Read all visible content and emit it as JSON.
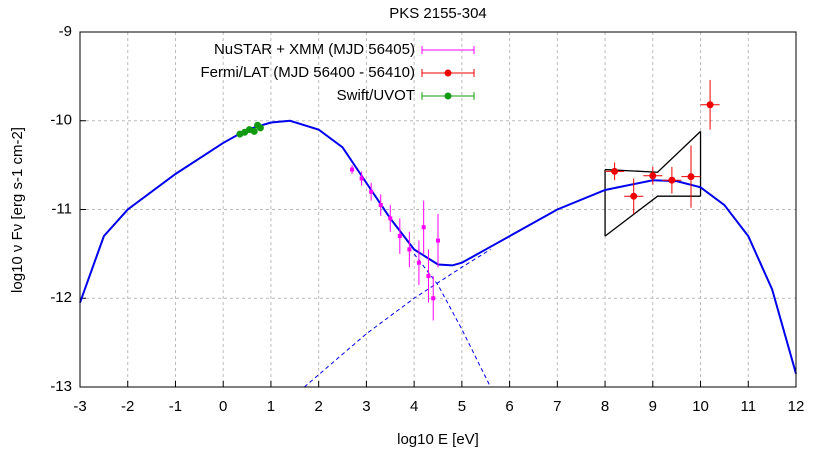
{
  "chart_data": {
    "type": "line",
    "title": "PKS 2155-304",
    "x_label": "log10 E [eV]",
    "y_label": "log10 ν Fν [erg s-1 cm-2]",
    "xlim": [
      -3,
      12
    ],
    "ylim": [
      -13,
      -9
    ],
    "xticks": [
      -3,
      -2,
      -1,
      0,
      1,
      2,
      3,
      4,
      5,
      6,
      7,
      8,
      9,
      10,
      11,
      12
    ],
    "yticks": [
      -13,
      -12,
      -11,
      -10,
      -9
    ],
    "grid": true,
    "series": [
      {
        "color": "#0000ee",
        "linestyle": "solid",
        "x": [
          -3,
          -2.5,
          -2,
          -1,
          0,
          0.5,
          1,
          1.4,
          2,
          2.5,
          3,
          3.5,
          4,
          4.5,
          4.8,
          5,
          5.5,
          6,
          7,
          8,
          9,
          9.5,
          10,
          10.5,
          11,
          11.5,
          12
        ],
        "values": [
          -12.05,
          -11.3,
          -11.0,
          -10.6,
          -10.25,
          -10.1,
          -10.02,
          -10.0,
          -10.1,
          -10.3,
          -10.7,
          -11.1,
          -11.45,
          -11.62,
          -11.63,
          -11.6,
          -11.45,
          -11.3,
          -11.0,
          -10.78,
          -10.67,
          -10.68,
          -10.75,
          -10.95,
          -11.3,
          -11.9,
          -12.85
        ]
      },
      {
        "color": "#0000ee",
        "linestyle": "dashed",
        "x": [
          4,
          4.5,
          5,
          5.6
        ],
        "values": [
          -11.5,
          -11.85,
          -12.35,
          -13
        ]
      },
      {
        "color": "#0000ee",
        "linestyle": "dashed",
        "x": [
          1.7,
          3,
          4,
          5,
          5.6
        ],
        "values": [
          -13,
          -12.4,
          -12.0,
          -11.65,
          -11.45
        ]
      },
      {
        "name": "NuSTAR + XMM (MJD 56405)",
        "color": "#ff00ff",
        "marker": "square",
        "linestyle": "none",
        "x": [
          2.7,
          2.9,
          3.1,
          3.3,
          3.5,
          3.7,
          3.9,
          4.1,
          4.2,
          4.3,
          4.4,
          4.5
        ],
        "values": [
          -10.55,
          -10.65,
          -10.8,
          -10.95,
          -11.1,
          -11.3,
          -11.45,
          -11.6,
          -11.2,
          -11.75,
          -12.0,
          -11.35
        ],
        "yerr": [
          0.05,
          0.08,
          0.1,
          0.12,
          0.15,
          0.2,
          0.2,
          0.25,
          0.3,
          0.3,
          0.25,
          0.3
        ],
        "xerr": [
          0.02,
          0.02,
          0.02,
          0.02,
          0.02,
          0.02,
          0.02,
          0.02,
          0.02,
          0.02,
          0.02,
          0.02
        ]
      },
      {
        "name": "Fermi/LAT (MJD 56400 - 56410)",
        "color": "#ee0000",
        "marker": "circle",
        "linestyle": "none",
        "x": [
          8.2,
          8.6,
          9.0,
          9.4,
          9.8,
          10.2
        ],
        "values": [
          -10.57,
          -10.85,
          -10.62,
          -10.67,
          -10.63,
          -9.82
        ],
        "yerr": [
          0.1,
          0.2,
          0.1,
          0.15,
          0.35,
          0.28
        ],
        "xerr": [
          0.2,
          0.2,
          0.2,
          0.2,
          0.2,
          0.2
        ]
      },
      {
        "name": "Swift/UVOT",
        "color": "#119911",
        "marker": "circle",
        "linestyle": "none",
        "x": [
          0.35,
          0.45,
          0.55,
          0.65,
          0.72,
          0.78
        ],
        "values": [
          -10.15,
          -10.13,
          -10.1,
          -10.12,
          -10.05,
          -10.08
        ],
        "yerr": [
          0.02,
          0.02,
          0.02,
          0.02,
          0.02,
          0.02
        ],
        "xerr": [
          0.02,
          0.02,
          0.02,
          0.02,
          0.02,
          0.02
        ]
      }
    ],
    "butterfly": {
      "color": "#000000",
      "x": [
        8,
        9.1,
        10
      ],
      "upper": [
        -10.55,
        -10.58,
        -10.12
      ],
      "lower": [
        -11.3,
        -10.85,
        -10.85
      ]
    }
  }
}
